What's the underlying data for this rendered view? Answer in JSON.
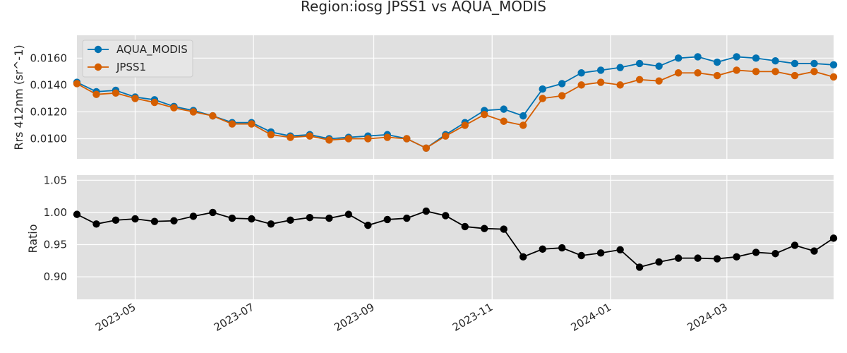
{
  "chart_data": {
    "type": "line",
    "title": "Region:iosg JPSS1 vs AQUA_MODIS",
    "colors": {
      "AQUA_MODIS": "#0072b2",
      "JPSS1": "#d55e00",
      "ratio": "#000000",
      "panel_bg": "#e0e0e0",
      "grid": "#ffffff"
    },
    "x": [
      "2023-04-01",
      "2023-04-11",
      "2023-04-21",
      "2023-05-01",
      "2023-05-11",
      "2023-05-21",
      "2023-05-31",
      "2023-06-10",
      "2023-06-20",
      "2023-06-30",
      "2023-07-10",
      "2023-07-20",
      "2023-07-30",
      "2023-08-09",
      "2023-08-19",
      "2023-08-29",
      "2023-09-08",
      "2023-09-18",
      "2023-09-28",
      "2023-10-08",
      "2023-10-18",
      "2023-10-28",
      "2023-11-07",
      "2023-11-17",
      "2023-11-27",
      "2023-12-07",
      "2023-12-17",
      "2023-12-27",
      "2024-01-06",
      "2024-01-16",
      "2024-01-26",
      "2024-02-05",
      "2024-02-15",
      "2024-02-25",
      "2024-03-06",
      "2024-03-16",
      "2024-03-26",
      "2024-04-05",
      "2024-04-15",
      "2024-04-25"
    ],
    "xlim": [
      "2023-04-01",
      "2024-04-25"
    ],
    "xticks": [
      "2023-05-01",
      "2023-07-01",
      "2023-09-01",
      "2023-11-01",
      "2024-01-01",
      "2024-03-01"
    ],
    "xtick_labels": [
      "2023-05",
      "2023-07",
      "2023-09",
      "2023-11",
      "2024-01",
      "2024-03"
    ],
    "top": {
      "ylabel": "Rrs 412nm (sr^-1)",
      "ylim": [
        0.0085,
        0.0177
      ],
      "yticks": [
        0.01,
        0.012,
        0.014,
        0.016
      ],
      "ytick_labels": [
        "0.0100",
        "0.0120",
        "0.0140",
        "0.0160"
      ],
      "legend_position": "upper-left",
      "series": [
        {
          "name": "AQUA_MODIS",
          "values": [
            0.0142,
            0.0135,
            0.0136,
            0.0131,
            0.0129,
            0.0124,
            0.0121,
            0.0117,
            0.0112,
            0.0112,
            0.0105,
            0.0102,
            0.0103,
            0.01,
            0.0101,
            0.0102,
            0.0103,
            0.01,
            0.0093,
            0.0103,
            0.0112,
            0.0121,
            0.0122,
            0.0117,
            0.0137,
            0.0141,
            0.0149,
            0.0151,
            0.0153,
            0.0156,
            0.0154,
            0.016,
            0.0161,
            0.0157,
            0.0161,
            0.016,
            0.0158,
            0.0156,
            0.0156,
            0.0155
          ]
        },
        {
          "name": "JPSS1",
          "values": [
            0.0141,
            0.0133,
            0.0134,
            0.013,
            0.0127,
            0.0123,
            0.012,
            0.0117,
            0.0111,
            0.0111,
            0.0103,
            0.0101,
            0.0102,
            0.0099,
            0.01,
            0.01,
            0.0101,
            0.01,
            0.0093,
            0.0102,
            0.011,
            0.0118,
            0.0113,
            0.011,
            0.013,
            0.0132,
            0.014,
            0.0142,
            0.014,
            0.0144,
            0.0143,
            0.0149,
            0.0149,
            0.0147,
            0.0151,
            0.015,
            0.015,
            0.0147,
            0.015,
            0.0146
          ]
        }
      ]
    },
    "bottom": {
      "ylabel": "Ratio",
      "ylim": [
        0.865,
        1.058
      ],
      "yticks": [
        0.9,
        0.95,
        1.0,
        1.05
      ],
      "ytick_labels": [
        "0.90",
        "0.95",
        "1.00",
        "1.05"
      ],
      "series": [
        {
          "name": "",
          "values": [
            0.997,
            0.982,
            0.988,
            0.99,
            0.986,
            0.987,
            0.994,
            1.0,
            0.991,
            0.99,
            0.982,
            0.988,
            0.992,
            0.991,
            0.997,
            0.98,
            0.989,
            0.991,
            1.002,
            0.995,
            0.978,
            0.975,
            0.974,
            0.931,
            0.943,
            0.945,
            0.933,
            0.937,
            0.942,
            0.915,
            0.923,
            0.929,
            0.929,
            0.928,
            0.931,
            0.938,
            0.936,
            0.949,
            0.94,
            0.96
          ]
        }
      ]
    }
  }
}
